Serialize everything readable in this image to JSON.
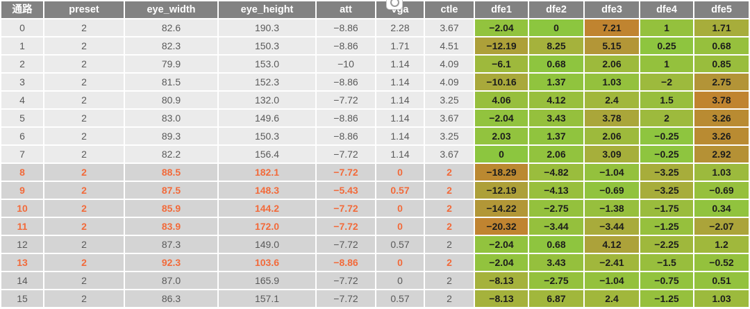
{
  "table": {
    "columns": [
      {
        "key": "ch",
        "label": "通路"
      },
      {
        "key": "preset",
        "label": "preset"
      },
      {
        "key": "eye_width",
        "label": "eye_width"
      },
      {
        "key": "eye_height",
        "label": "eye_height"
      },
      {
        "key": "att",
        "label": "att"
      },
      {
        "key": "vga",
        "label": "vga"
      },
      {
        "key": "ctle",
        "label": "ctle"
      },
      {
        "key": "dfe1",
        "label": "dfe1"
      },
      {
        "key": "dfe2",
        "label": "dfe2"
      },
      {
        "key": "dfe3",
        "label": "dfe3"
      },
      {
        "key": "dfe4",
        "label": "dfe4"
      },
      {
        "key": "dfe5",
        "label": "dfe5"
      }
    ],
    "rows": [
      {
        "ch": "0",
        "preset": "2",
        "eye_width": "82.6",
        "eye_height": "190.3",
        "att": "−8.86",
        "vga": "2.28",
        "ctle": "3.67",
        "dfe": [
          -2.04,
          0,
          7.21,
          1,
          1.71
        ],
        "shade": "light",
        "accent": false
      },
      {
        "ch": "1",
        "preset": "2",
        "eye_width": "82.3",
        "eye_height": "150.3",
        "att": "−8.86",
        "vga": "1.71",
        "ctle": "4.51",
        "dfe": [
          -12.19,
          8.25,
          5.15,
          0.25,
          0.68
        ],
        "shade": "light",
        "accent": false
      },
      {
        "ch": "2",
        "preset": "2",
        "eye_width": "79.9",
        "eye_height": "153.0",
        "att": "−10",
        "vga": "1.14",
        "ctle": "4.09",
        "dfe": [
          -6.1,
          0.68,
          2.06,
          1,
          0.85
        ],
        "shade": "light",
        "accent": false
      },
      {
        "ch": "3",
        "preset": "2",
        "eye_width": "81.5",
        "eye_height": "152.3",
        "att": "−8.86",
        "vga": "1.14",
        "ctle": "4.09",
        "dfe": [
          -10.16,
          1.37,
          1.03,
          -2,
          2.75
        ],
        "shade": "light",
        "accent": false
      },
      {
        "ch": "4",
        "preset": "2",
        "eye_width": "80.9",
        "eye_height": "132.0",
        "att": "−7.72",
        "vga": "1.14",
        "ctle": "3.25",
        "dfe": [
          4.06,
          4.12,
          2.4,
          1.5,
          3.78
        ],
        "shade": "light",
        "accent": false
      },
      {
        "ch": "5",
        "preset": "2",
        "eye_width": "83.0",
        "eye_height": "149.6",
        "att": "−8.86",
        "vga": "1.14",
        "ctle": "3.67",
        "dfe": [
          -2.04,
          3.43,
          3.78,
          2,
          3.26
        ],
        "shade": "light",
        "accent": false
      },
      {
        "ch": "6",
        "preset": "2",
        "eye_width": "89.3",
        "eye_height": "150.3",
        "att": "−8.86",
        "vga": "1.14",
        "ctle": "3.25",
        "dfe": [
          2.03,
          1.37,
          2.06,
          -0.25,
          3.26
        ],
        "shade": "light",
        "accent": false
      },
      {
        "ch": "7",
        "preset": "2",
        "eye_width": "82.2",
        "eye_height": "156.4",
        "att": "−7.72",
        "vga": "1.14",
        "ctle": "3.67",
        "dfe": [
          0,
          2.06,
          3.09,
          -0.25,
          2.92
        ],
        "shade": "light",
        "accent": false
      },
      {
        "ch": "8",
        "preset": "2",
        "eye_width": "88.5",
        "eye_height": "182.1",
        "att": "−7.72",
        "vga": "0",
        "ctle": "2",
        "dfe": [
          -18.29,
          -4.82,
          -1.04,
          -3.25,
          1.03
        ],
        "shade": "dark",
        "accent": true
      },
      {
        "ch": "9",
        "preset": "2",
        "eye_width": "87.5",
        "eye_height": "148.3",
        "att": "−5.43",
        "vga": "0.57",
        "ctle": "2",
        "dfe": [
          -12.19,
          -4.13,
          -0.69,
          -3.25,
          -0.69
        ],
        "shade": "dark",
        "accent": true
      },
      {
        "ch": "10",
        "preset": "2",
        "eye_width": "85.9",
        "eye_height": "144.2",
        "att": "−7.72",
        "vga": "0",
        "ctle": "2",
        "dfe": [
          -14.22,
          -2.75,
          -1.38,
          -1.75,
          0.34
        ],
        "shade": "dark",
        "accent": true
      },
      {
        "ch": "11",
        "preset": "2",
        "eye_width": "83.9",
        "eye_height": "172.0",
        "att": "−7.72",
        "vga": "0",
        "ctle": "2",
        "dfe": [
          -20.32,
          -3.44,
          -3.44,
          -1.25,
          -2.07
        ],
        "shade": "dark",
        "accent": true
      },
      {
        "ch": "12",
        "preset": "2",
        "eye_width": "87.3",
        "eye_height": "149.0",
        "att": "−7.72",
        "vga": "0.57",
        "ctle": "2",
        "dfe": [
          -2.04,
          0.68,
          4.12,
          -2.25,
          1.2
        ],
        "shade": "dark",
        "accent": false
      },
      {
        "ch": "13",
        "preset": "2",
        "eye_width": "92.3",
        "eye_height": "103.6",
        "att": "−8.86",
        "vga": "0",
        "ctle": "2",
        "dfe": [
          -2.04,
          3.43,
          -2.41,
          -1.5,
          -0.52
        ],
        "shade": "dark",
        "accent": true
      },
      {
        "ch": "14",
        "preset": "2",
        "eye_width": "87.0",
        "eye_height": "165.9",
        "att": "−7.72",
        "vga": "0",
        "ctle": "2",
        "dfe": [
          -8.13,
          -2.75,
          -1.04,
          -0.75,
          0.51
        ],
        "shade": "dark",
        "accent": false
      },
      {
        "ch": "15",
        "preset": "2",
        "eye_width": "86.3",
        "eye_height": "157.1",
        "att": "−7.72",
        "vga": "0.57",
        "ctle": "2",
        "dfe": [
          -8.13,
          6.87,
          2.4,
          -1.25,
          1.03
        ],
        "shade": "dark",
        "accent": false
      }
    ]
  },
  "heatmap": {
    "group_max": [
      20.32,
      20.32,
      7.21,
      7.21,
      3.78
    ],
    "stops": [
      [
        0.0,
        "#8CC63F"
      ],
      [
        0.18,
        "#96C03D"
      ],
      [
        0.38,
        "#A4B43C"
      ],
      [
        0.55,
        "#ABA43A"
      ],
      [
        0.72,
        "#B39537"
      ],
      [
        0.88,
        "#BA8A31"
      ],
      [
        1.0,
        "#C08430"
      ]
    ]
  },
  "colors": {
    "header_bg": "#828282",
    "header_text": "#ffffff",
    "row_light_bg": "#ebebeb",
    "row_dark_bg": "#d4d4d4",
    "text_gray": "#595959",
    "text_accent": "#f26a3a",
    "dfe_text": "#1c1c1c",
    "gridline": "#ffffff"
  },
  "icons": {
    "badge": "clock-icon"
  }
}
